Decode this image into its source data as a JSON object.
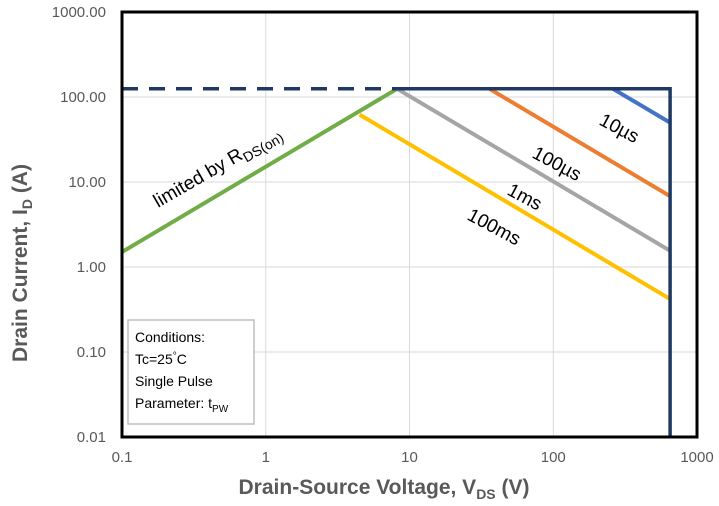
{
  "chart_data": {
    "type": "line",
    "title": "",
    "x_scale": "log",
    "y_scale": "log",
    "xlim": [
      0.1,
      1000
    ],
    "ylim": [
      0.01,
      1000
    ],
    "grid": true,
    "x_ticks": [
      "0.1",
      "1",
      "10",
      "100",
      "1000"
    ],
    "y_ticks": [
      "0.01",
      "0.10",
      "1.00",
      "10.00",
      "100.00",
      "1000.00"
    ],
    "xlabel": {
      "main": "Drain-Source Voltage, V",
      "sub": "DS",
      "unit": " (V)"
    },
    "ylabel": {
      "main": "Drain Current, I",
      "sub": "D",
      "unit": " (A)"
    },
    "colors": {
      "rds_on": "#70ad47",
      "current_limit": "#203864",
      "us10": "#4472c4",
      "us100": "#ed7d31",
      "ms1": "#a5a5a5",
      "ms100": "#ffc000",
      "grid": "#d9d9d9",
      "frame": "#000000"
    },
    "series": [
      {
        "key": "rds_on",
        "name": "limited by R",
        "name_sub": "DS(on)",
        "x": [
          0.1,
          8.2
        ],
        "y": [
          1.5,
          125
        ]
      },
      {
        "key": "current_limit",
        "name": "",
        "x": [
          0.1,
          8.2,
          650,
          650
        ],
        "y": [
          125,
          125,
          125,
          0.01
        ]
      },
      {
        "key": "us10",
        "name": "10µs",
        "x": [
          260,
          650
        ],
        "y": [
          125,
          50
        ]
      },
      {
        "key": "us100",
        "name": "100µs",
        "x": [
          36,
          650
        ],
        "y": [
          125,
          6.8
        ]
      },
      {
        "key": "ms1",
        "name": "1ms",
        "x": [
          8.2,
          650
        ],
        "y": [
          125,
          1.55
        ]
      },
      {
        "key": "ms100",
        "name": "100ms",
        "x": [
          4.5,
          650
        ],
        "y": [
          62,
          0.42
        ]
      }
    ],
    "annotations": {
      "rds_main": "limited by R",
      "rds_sub": "DS(on)",
      "us10": "10µs",
      "us100": "100µs",
      "ms1": "1ms",
      "ms100": "100ms"
    },
    "conditions": {
      "heading": "Conditions:",
      "temp": "Tc=25",
      "temp_deg": "°",
      "temp_unit": "C",
      "pulse": "Single Pulse",
      "param": "Parameter: t",
      "param_sub": "PW"
    }
  }
}
